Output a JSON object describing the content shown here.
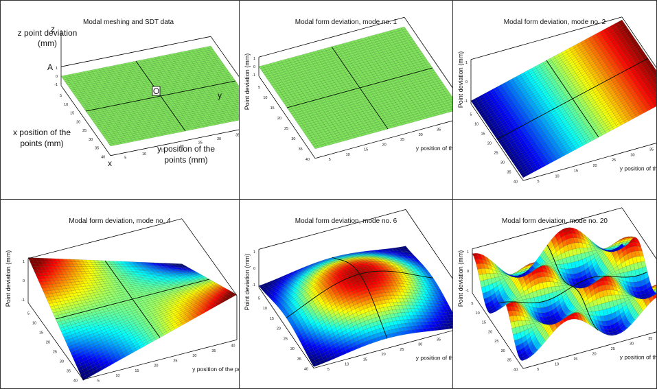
{
  "chart_data": [
    {
      "type": "surface",
      "title": "Modal meshing and SDT data",
      "zlabel": "z point deviation (mm)",
      "xlabel": "x position of the points (mm)",
      "ylabel": "y position of the points (mm)",
      "axis_letters": {
        "x": "x",
        "y": "y",
        "z": "z",
        "a": "A",
        "o": "O"
      },
      "x_ticks": [
        "5",
        "10",
        "15",
        "20",
        "25",
        "30",
        "35",
        "40"
      ],
      "y_ticks": [
        "5",
        "10",
        "15",
        "20",
        "25",
        "30",
        "35",
        "40"
      ],
      "z_ticks": [
        "1",
        "0",
        "-1"
      ],
      "surface": "flat",
      "colormap": "green"
    },
    {
      "type": "surface",
      "title": "Modal form deviation, mode no. 1",
      "zlabel": "Point deviation (mm)",
      "ylabel": "y position of the point (mm)",
      "x_ticks": [
        "5",
        "10",
        "15",
        "20",
        "25",
        "30",
        "35",
        "40"
      ],
      "y_ticks": [
        "5",
        "10",
        "15",
        "20",
        "25",
        "30",
        "35",
        "40"
      ],
      "z_ticks": [
        "1",
        "0",
        "-1"
      ],
      "surface": "flat",
      "colormap": "green"
    },
    {
      "type": "surface",
      "title": "Modal form deviation, mode no. 2",
      "zlabel": "Point deviation (mm)",
      "ylabel": "y position of the point (mm)",
      "x_ticks": [
        "5",
        "10",
        "15",
        "20",
        "25",
        "30",
        "35",
        "40"
      ],
      "y_ticks": [
        "5",
        "10",
        "15",
        "20",
        "25",
        "30",
        "35",
        "40"
      ],
      "z_ticks": [
        "1",
        "0",
        "-1"
      ],
      "surface": "tilt along y (linear from -1 to 1)",
      "colormap": "jet"
    },
    {
      "type": "surface",
      "title": "Modal form deviation, mode no. 4",
      "zlabel": "Point deviation (mm)",
      "ylabel": "y position of the point (mm)",
      "x_ticks": [
        "5",
        "10",
        "15",
        "20",
        "25",
        "30",
        "35",
        "40"
      ],
      "y_ticks": [
        "5",
        "10",
        "15",
        "20",
        "25",
        "30",
        "35",
        "40"
      ],
      "z_ticks": [
        "1",
        "0",
        "-1"
      ],
      "surface": "twist / saddle (x·y)",
      "colormap": "jet"
    },
    {
      "type": "surface",
      "title": "Modal form deviation, mode no. 6",
      "zlabel": "Point deviation (mm)",
      "ylabel": "y position of the point (mm)",
      "x_ticks": [
        "5",
        "10",
        "15",
        "20",
        "25",
        "30",
        "35",
        "40"
      ],
      "y_ticks": [
        "5",
        "10",
        "15",
        "20",
        "25",
        "30",
        "35",
        "40"
      ],
      "z_ticks": [
        "1",
        "0",
        "-1"
      ],
      "surface": "central dome",
      "colormap": "jet"
    },
    {
      "type": "surface",
      "title": "Modal form deviation, mode no. 20",
      "zlabel": "Point deviation (mm)",
      "ylabel": "y position of the point (mm)",
      "x_ticks": [
        "5",
        "10",
        "15",
        "20",
        "25",
        "30",
        "35",
        "40"
      ],
      "y_ticks": [
        "5",
        "10",
        "15",
        "20",
        "25",
        "30",
        "35",
        "40"
      ],
      "z_ticks": [
        "1",
        "0",
        "-1"
      ],
      "surface": "egg-crate wave pattern",
      "colormap": "jet"
    }
  ]
}
